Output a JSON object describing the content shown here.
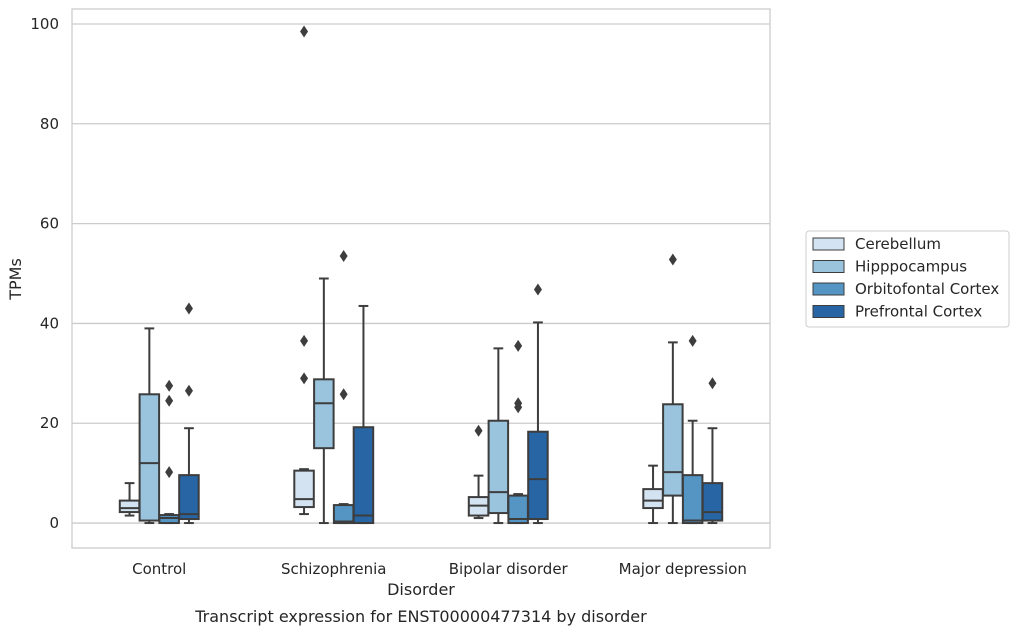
{
  "chart_data": {
    "type": "box",
    "caption": "Transcript expression for ENST00000477314 by disorder",
    "xlabel": "Disorder",
    "ylabel": "TPMs",
    "ylim": [
      -5,
      103
    ],
    "yticks": [
      0,
      20,
      40,
      60,
      80,
      100
    ],
    "grid": "horizontal",
    "legend_position": "right",
    "categories": [
      "Control",
      "Schizophrenia",
      "Bipolar disorder",
      "Major depression"
    ],
    "series": [
      {
        "name": "Cerebellum",
        "color": "#d4e3f1",
        "boxes": [
          {
            "whislo": 1.5,
            "q1": 2.2,
            "med": 3.0,
            "q3": 4.5,
            "whishi": 8.0,
            "fliers": []
          },
          {
            "whislo": 1.8,
            "q1": 3.2,
            "med": 4.8,
            "q3": 10.5,
            "whishi": 10.8,
            "fliers": [
              29.0,
              36.5,
              98.5
            ]
          },
          {
            "whislo": 1.0,
            "q1": 1.5,
            "med": 3.5,
            "q3": 5.2,
            "whishi": 9.5,
            "fliers": [
              18.5
            ]
          },
          {
            "whislo": 0.0,
            "q1": 3.0,
            "med": 4.5,
            "q3": 6.8,
            "whishi": 11.5,
            "fliers": []
          }
        ]
      },
      {
        "name": "Hipppocampus",
        "color": "#9ac3dd",
        "boxes": [
          {
            "whislo": 0.0,
            "q1": 0.5,
            "med": 12.0,
            "q3": 25.8,
            "whishi": 39.0,
            "fliers": []
          },
          {
            "whislo": 0.0,
            "q1": 15.0,
            "med": 24.0,
            "q3": 28.8,
            "whishi": 49.0,
            "fliers": []
          },
          {
            "whislo": 0.0,
            "q1": 2.0,
            "med": 6.2,
            "q3": 20.5,
            "whishi": 35.0,
            "fliers": []
          },
          {
            "whislo": 0.0,
            "q1": 5.5,
            "med": 10.2,
            "q3": 23.8,
            "whishi": 36.2,
            "fliers": [
              52.8
            ]
          }
        ]
      },
      {
        "name": "Orbitofontal Cortex",
        "color": "#5495c4",
        "boxes": [
          {
            "whislo": 0.0,
            "q1": 0.0,
            "med": 1.0,
            "q3": 1.6,
            "whishi": 1.8,
            "fliers": [
              10.2,
              24.5,
              27.5
            ]
          },
          {
            "whislo": 0.0,
            "q1": 0.0,
            "med": 0.3,
            "q3": 3.6,
            "whishi": 3.8,
            "fliers": [
              25.8,
              53.5
            ]
          },
          {
            "whislo": 0.0,
            "q1": 0.0,
            "med": 0.8,
            "q3": 5.5,
            "whishi": 5.8,
            "fliers": [
              23.2,
              24.0,
              35.5
            ]
          },
          {
            "whislo": 0.0,
            "q1": 0.0,
            "med": 0.5,
            "q3": 9.6,
            "whishi": 20.5,
            "fliers": [
              36.5
            ]
          }
        ]
      },
      {
        "name": "Prefrontal Cortex",
        "color": "#2765a4",
        "boxes": [
          {
            "whislo": 0.0,
            "q1": 0.8,
            "med": 1.8,
            "q3": 9.6,
            "whishi": 19.0,
            "fliers": [
              26.5,
              43.0
            ]
          },
          {
            "whislo": 0.0,
            "q1": 0.0,
            "med": 1.5,
            "q3": 19.2,
            "whishi": 43.5,
            "fliers": []
          },
          {
            "whislo": 0.0,
            "q1": 0.8,
            "med": 8.8,
            "q3": 18.3,
            "whishi": 40.2,
            "fliers": [
              46.8
            ]
          },
          {
            "whislo": 0.0,
            "q1": 0.5,
            "med": 2.2,
            "q3": 8.0,
            "whishi": 19.0,
            "fliers": [
              28.0
            ]
          }
        ]
      }
    ]
  }
}
